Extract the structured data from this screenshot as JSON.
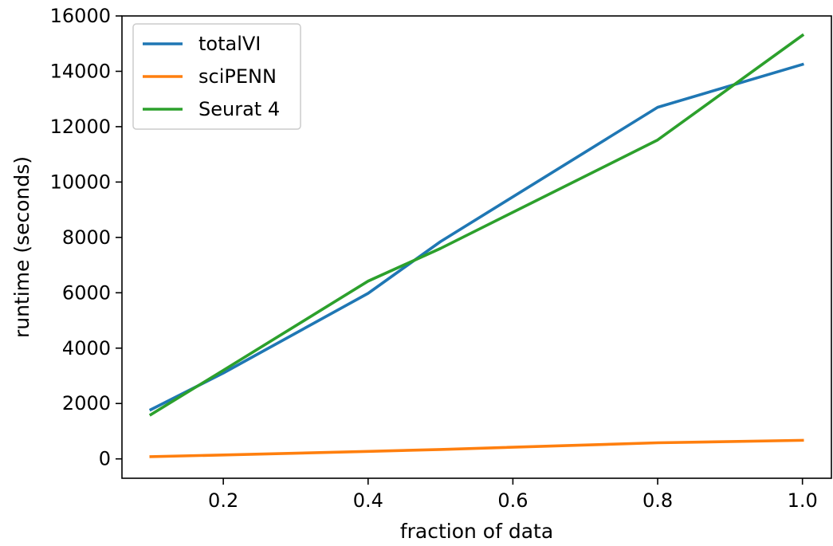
{
  "chart_data": {
    "type": "line",
    "xlabel": "fraction of data",
    "ylabel": "runtime (seconds)",
    "xlim": [
      0.06,
      1.04
    ],
    "ylim": [
      -700,
      16000
    ],
    "xticks": [
      0.2,
      0.4,
      0.6,
      0.8,
      1.0
    ],
    "xtick_labels": [
      "0.2",
      "0.4",
      "0.6",
      "0.8",
      "1.0"
    ],
    "yticks": [
      0,
      2000,
      4000,
      6000,
      8000,
      10000,
      12000,
      14000,
      16000
    ],
    "ytick_labels": [
      "0",
      "2000",
      "4000",
      "6000",
      "8000",
      "10000",
      "12000",
      "14000",
      "16000"
    ],
    "grid": false,
    "legend_position": "top-left",
    "series": [
      {
        "name": "totalVI",
        "color": "#1f77b4",
        "x": [
          0.1,
          0.2,
          0.4,
          0.5,
          0.8,
          1.0
        ],
        "y": [
          1780,
          3100,
          5980,
          7850,
          12700,
          14250
        ]
      },
      {
        "name": "sciPENN",
        "color": "#ff7f0e",
        "x": [
          0.1,
          0.2,
          0.4,
          0.5,
          0.8,
          1.0
        ],
        "y": [
          80,
          140,
          270,
          340,
          580,
          670
        ]
      },
      {
        "name": "Seurat 4",
        "color": "#2ca02c",
        "x": [
          0.1,
          0.2,
          0.4,
          0.5,
          0.8,
          1.0
        ],
        "y": [
          1600,
          3200,
          6420,
          7600,
          11520,
          15300
        ]
      }
    ]
  }
}
